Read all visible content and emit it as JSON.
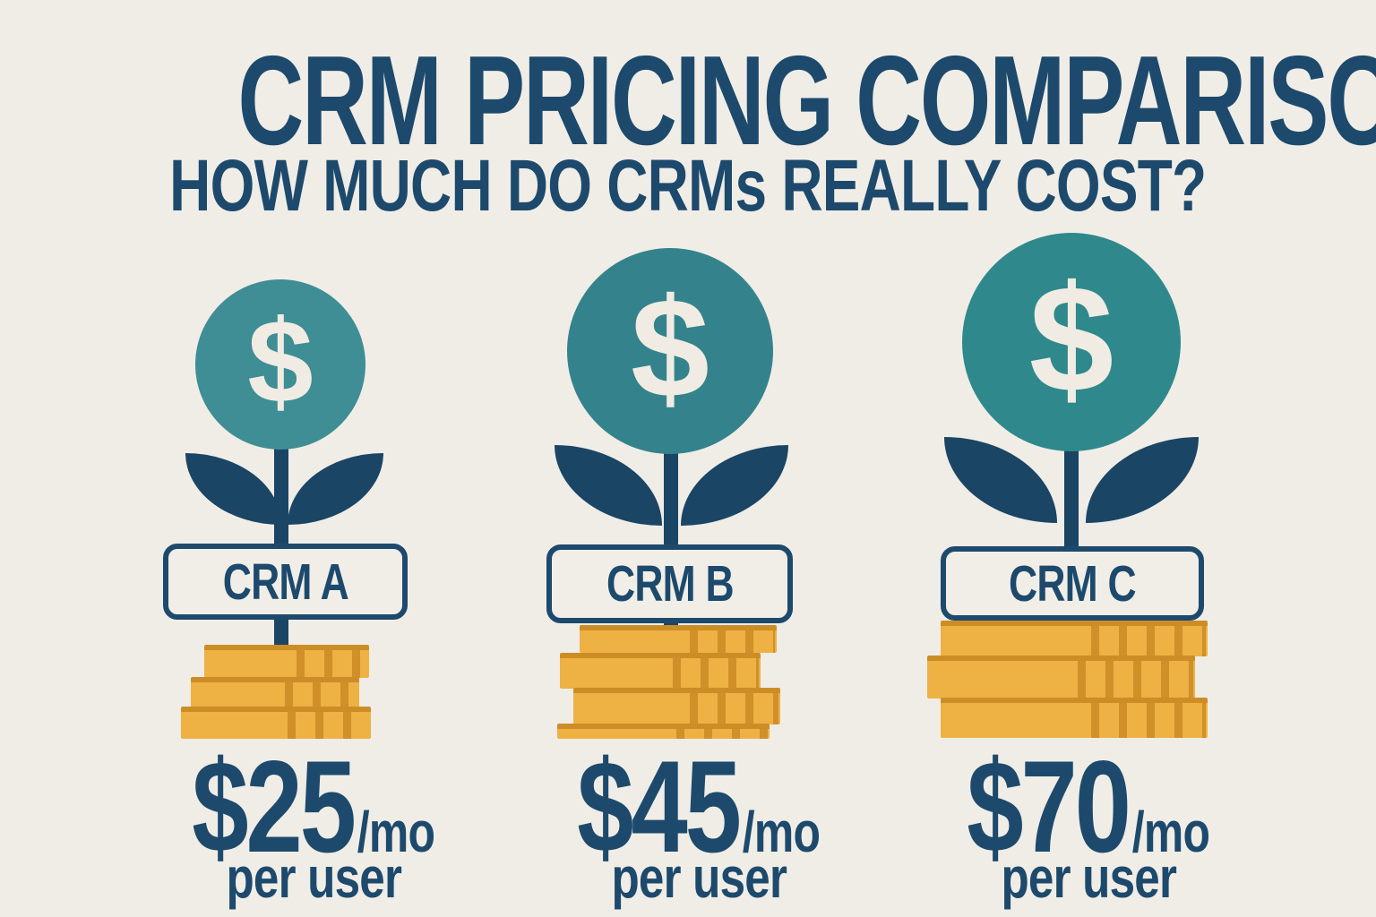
{
  "header": {
    "title": "CRM PRICING COMPARISON",
    "subtitle": "HOW MUCH DO CRMs REALLY COST?"
  },
  "currency_symbol": "$",
  "plants": [
    {
      "label": "CRM A",
      "price": "$25",
      "period": "/mo",
      "per_user": "per user",
      "coin_rows": 3
    },
    {
      "label": "CRM B",
      "price": "$45",
      "period": "/mo",
      "per_user": "per user",
      "coin_rows": 4
    },
    {
      "label": "CRM C",
      "price": "$70",
      "period": "/mo",
      "per_user": "per user",
      "coin_rows": 3
    }
  ],
  "colors": {
    "bg": "#f0ede7",
    "navy": "#1d4a6c",
    "leaf": "#1b4565",
    "teal_a": "#3f8d95",
    "teal_b": "#34838c",
    "teal_c": "#2f898c",
    "coin": "#eeb144",
    "coin_line": "#cd8d26",
    "box_fill": "#f1eee8",
    "cream": "#f0ece3"
  },
  "chart_data": {
    "type": "bar",
    "title": "CRM PRICING COMPARISON",
    "subtitle": "HOW MUCH DO CRMs REALLY COST?",
    "categories": [
      "CRM A",
      "CRM B",
      "CRM C"
    ],
    "values": [
      25,
      45,
      70
    ],
    "unit": "USD per user per month",
    "value_labels": [
      "$25/mo per user",
      "$45/mo per user",
      "$70/mo per user"
    ],
    "legend": "none",
    "grid": false
  }
}
